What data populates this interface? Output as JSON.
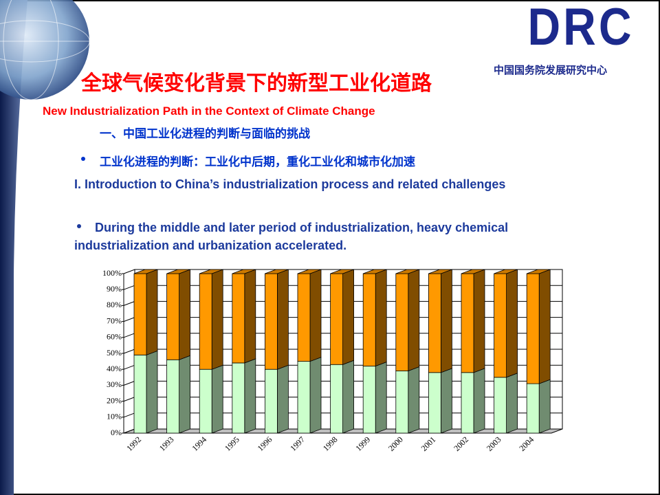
{
  "logo": {
    "mark": "DRC",
    "name": "中国国务院发展研究中心"
  },
  "header": {
    "title": "全球气候变化背景下的新型工业化道路",
    "subtitle": "New Industrialization Path in the Context of Climate Change"
  },
  "content": {
    "section_cn": "一、中国工业化进程的判断与面临的挑战",
    "bullet_cn": "工业化进程的判断：工业化中后期，重化工业化和城市化加速",
    "section_en": "I. Introduction to China’s industrialization process and related challenges",
    "bullet_en": "During the middle and later period of industrialization, heavy chemical industrialization and urbanization accelerated."
  },
  "chart_data": {
    "type": "bar",
    "stacked": true,
    "categories": [
      "1992",
      "1993",
      "1994",
      "1995",
      "1996",
      "1997",
      "1998",
      "1999",
      "2000",
      "2001",
      "2002",
      "2003",
      "2004"
    ],
    "series": [
      {
        "color": "#ccffcc",
        "values": [
          49,
          46,
          40,
          44,
          40,
          45,
          43,
          42,
          39,
          38,
          38,
          35,
          31
        ]
      },
      {
        "color": "#ff9900",
        "values": [
          51,
          54,
          60,
          56,
          60,
          55,
          57,
          58,
          61,
          62,
          62,
          65,
          69
        ]
      }
    ],
    "ylim": [
      0,
      100
    ],
    "yticks": [
      {
        "value": 0,
        "label": "0%"
      },
      {
        "value": 10,
        "label": "10%"
      },
      {
        "value": 20,
        "label": "20%"
      },
      {
        "value": 30,
        "label": "30%"
      },
      {
        "value": 40,
        "label": "40%"
      },
      {
        "value": 50,
        "label": "50%"
      },
      {
        "value": 60,
        "label": "60%"
      },
      {
        "value": 70,
        "label": "70%"
      },
      {
        "value": 80,
        "label": "80%"
      },
      {
        "value": 90,
        "label": "90%"
      },
      {
        "value": 100,
        "label": "100%"
      }
    ],
    "grid": true
  }
}
